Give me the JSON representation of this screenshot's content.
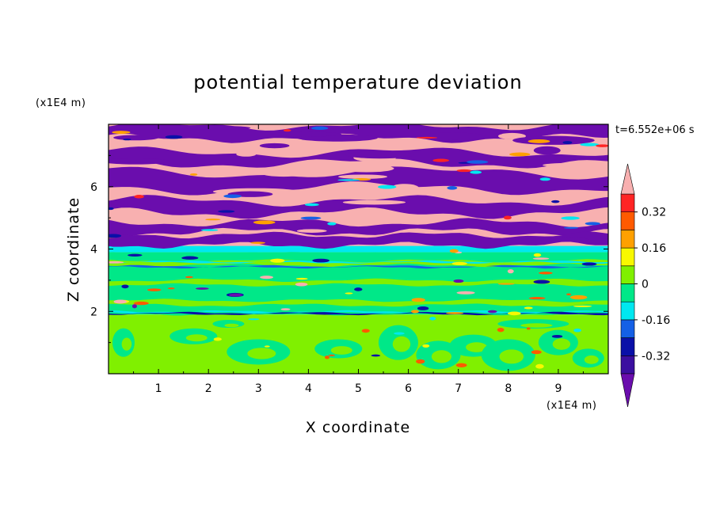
{
  "chart_data": {
    "type": "heatmap",
    "title": "potential temperature deviation",
    "xlabel": "X coordinate",
    "ylabel": "Z coordinate",
    "x_unit": "(x1E4 m)",
    "y_unit": "(x1E4 m)",
    "time_label": "t=6.552e+06 s",
    "xlim": [
      0,
      10
    ],
    "ylim": [
      0,
      8
    ],
    "x_ticks": [
      "1",
      "2",
      "3",
      "4",
      "5",
      "6",
      "7",
      "8",
      "9"
    ],
    "y_ticks": [
      "2",
      "4",
      "6"
    ],
    "colorbar": {
      "labels": [
        "0.32",
        "0.16",
        "0",
        "-0.16",
        "-0.32"
      ],
      "label_values": [
        0.32,
        0.16,
        0,
        -0.16,
        -0.32
      ],
      "levels": [
        -0.4,
        -0.32,
        -0.24,
        -0.16,
        -0.08,
        0,
        0.08,
        0.16,
        0.24,
        0.32,
        0.4
      ],
      "colors": [
        "#6a0dad",
        "#3b0fa0",
        "#0a10a8",
        "#1560e6",
        "#00e8f0",
        "#00e888",
        "#80f000",
        "#f8f800",
        "#ffa000",
        "#ff5a00",
        "#ff2424",
        "#f8b0b0"
      ],
      "extend": "both"
    },
    "layers": [
      {
        "z_range": [
          0,
          0.8
        ],
        "dominant": "0 to 0.08",
        "color": "#80f000"
      },
      {
        "z_range": [
          0.8,
          1.9
        ],
        "dominant": "0 to 0.08, mixed with -0.08 to 0",
        "color": "#80f000"
      },
      {
        "z_range": [
          1.9,
          3.9
        ],
        "dominant": "-0.08 to 0 and 0 to 0.08 bands",
        "color": "#00e888"
      },
      {
        "z_range": [
          3.9,
          4.1
        ],
        "dominant": "-0.16 to -0.08",
        "color": "#00e8f0"
      },
      {
        "z_range": [
          4.1,
          8.0
        ],
        "dominant": "alternating > 0.4 and < -0.4 bands",
        "color": "#f8b0b0"
      }
    ]
  }
}
